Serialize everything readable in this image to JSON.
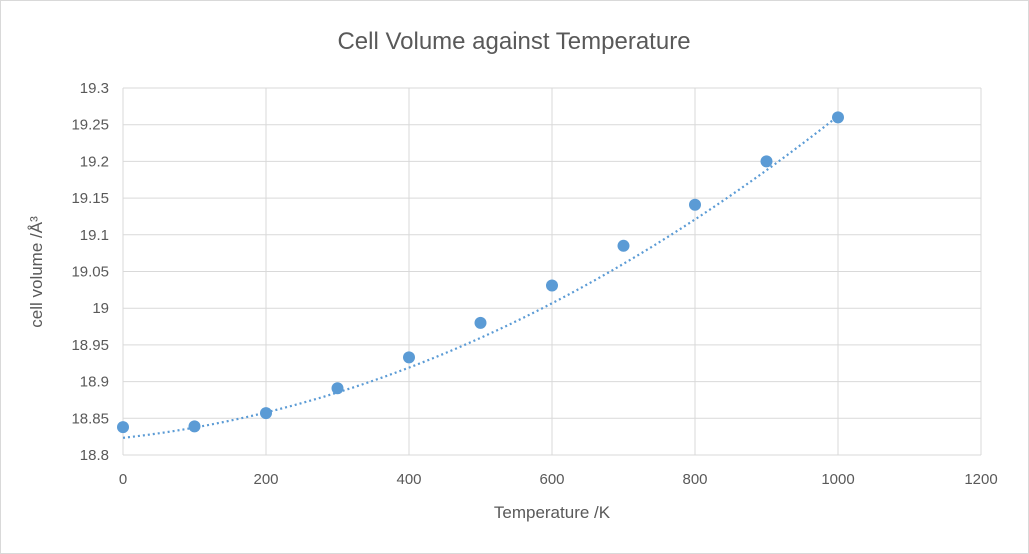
{
  "chart_data": {
    "type": "scatter",
    "title": "Cell Volume against Temperature",
    "xlabel": "Temperature /K",
    "ylabel": "cell volume /Å³",
    "xlim": [
      0,
      1200
    ],
    "ylim": [
      18.8,
      19.3
    ],
    "xticks": [
      "0",
      "200",
      "400",
      "600",
      "800",
      "1000",
      "1200"
    ],
    "yticks": [
      "18.8",
      "18.85",
      "18.9",
      "18.95",
      "19",
      "19.05",
      "19.1",
      "19.15",
      "19.2",
      "19.25",
      "19.3"
    ],
    "grid": true,
    "series": [
      {
        "x": [
          0,
          100,
          200,
          300,
          400,
          500,
          600,
          700,
          800,
          900,
          1000
        ],
        "y": [
          18.838,
          18.839,
          18.857,
          18.891,
          18.933,
          18.98,
          19.031,
          19.085,
          19.141,
          19.2,
          19.26
        ],
        "color": "#5b9bd5"
      }
    ],
    "trendline": {
      "type": "polynomial-2",
      "style": "dotted",
      "color": "#5b9bd5",
      "coefficients": [
        18.8234,
        0.0001063,
        3.32e-07
      ]
    }
  }
}
